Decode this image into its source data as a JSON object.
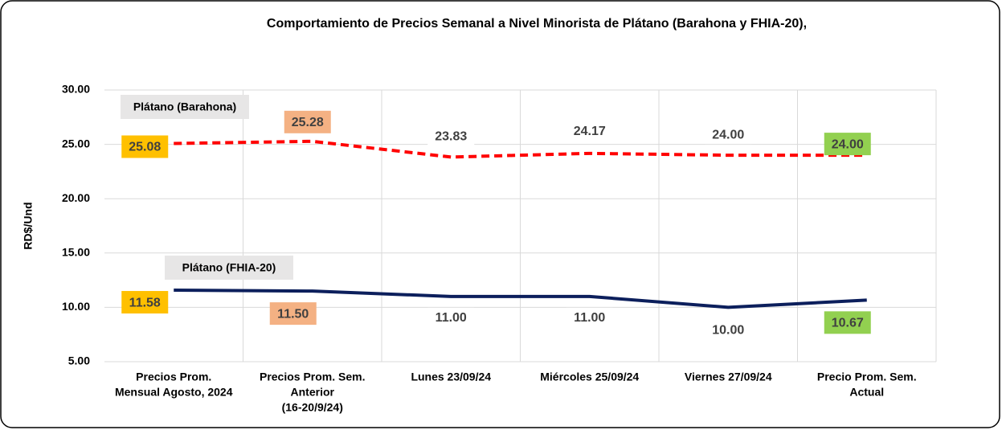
{
  "chart_data": {
    "type": "line",
    "title": "Comportamiento de Precios Semanal a Nivel Minorista de Plátano (Barahona y FHIA-20),",
    "y_label": "RD$/Und",
    "categories": [
      [
        "Precios Prom.",
        "Mensual Agosto, 2024"
      ],
      [
        "Precios Prom. Sem.",
        "Anterior",
        "(16-20/9/24)"
      ],
      [
        "Lunes  23/09/24"
      ],
      [
        "Miércoles 25/09/24"
      ],
      [
        "Viernes 27/09/24"
      ],
      [
        "Precio Prom. Sem.",
        "Actual"
      ]
    ],
    "series": [
      {
        "name": "Plátano (Barahona)",
        "color": "#ff0000",
        "dashed": true,
        "values": [
          25.08,
          25.28,
          23.83,
          24.17,
          24.0,
          24.0
        ],
        "value_labels": [
          "25.08",
          "25.28",
          "23.83",
          "24.17",
          "24.00",
          "24.00"
        ],
        "label_colors": [
          "#ffc000",
          "#f4b183",
          null,
          null,
          null,
          "#92d050"
        ]
      },
      {
        "name": "Plátano (FHIA-20)",
        "color": "#0c1f5c",
        "dashed": false,
        "values": [
          11.58,
          11.5,
          11.0,
          11.0,
          10.0,
          10.67
        ],
        "value_labels": [
          "11.58",
          "11.50",
          "11.00",
          "11.00",
          "10.00",
          "10.67"
        ],
        "label_colors": [
          "#ffc000",
          "#f4b183",
          null,
          null,
          null,
          "#92d050"
        ]
      }
    ],
    "ylim": [
      5,
      30
    ],
    "yticks": [
      {
        "value": 5,
        "label": "5.00"
      },
      {
        "value": 10,
        "label": "10.00"
      },
      {
        "value": 15,
        "label": "15.00"
      },
      {
        "value": 20,
        "label": "20.00"
      },
      {
        "value": 25,
        "label": "25.00"
      },
      {
        "value": 30,
        "label": "30.00"
      }
    ],
    "grid": true
  }
}
